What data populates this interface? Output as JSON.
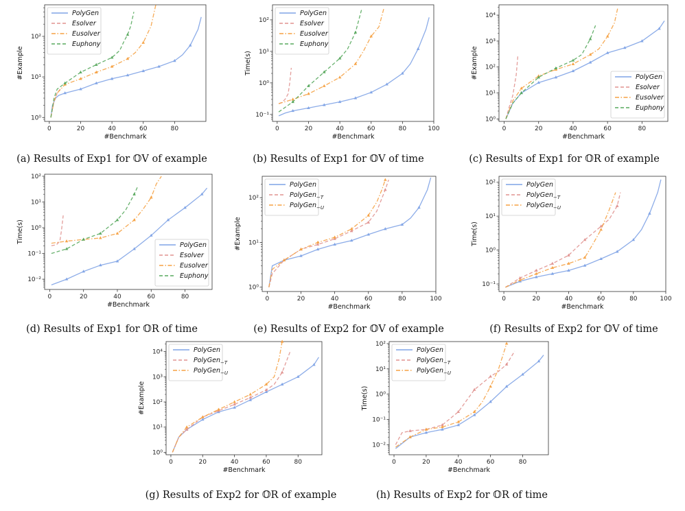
{
  "colors": {
    "PolyGen": "#7fa3e6",
    "Esolver": "#e0928f",
    "Eusolver": "#f5a142",
    "Euphony": "#57a85d",
    "PolyGen_T": "#e0928f",
    "PolyGen_U": "#f5a142",
    "axis": "#333333"
  },
  "chart_data": [
    {
      "id": "a",
      "type": "line",
      "log_y": true,
      "caption": "(a)  Results of Exp1 for 𝕆V of example",
      "xlabel": "#Benchmark",
      "ylabel": "#Example",
      "xlim": [
        -3,
        100
      ],
      "ylim": [
        0.8,
        600
      ],
      "xticks": [
        0,
        20,
        40,
        60,
        80
      ],
      "yticks": [
        1,
        10,
        100
      ],
      "ytick_labels": [
        "10⁰",
        "10¹",
        "10²"
      ],
      "legend": "top-left",
      "series": [
        {
          "name": "PolyGen",
          "style": "solid",
          "x": [
            1,
            2,
            4,
            6,
            10,
            20,
            30,
            40,
            50,
            60,
            70,
            80,
            85,
            90,
            95,
            97
          ],
          "y": [
            1,
            2,
            3,
            3.5,
            4,
            5,
            7,
            9,
            11,
            14,
            18,
            25,
            35,
            60,
            150,
            300
          ]
        },
        {
          "name": "Esolver",
          "style": "dashed",
          "x": [
            1,
            2,
            3,
            5,
            7
          ],
          "y": [
            1,
            1.6,
            2.5,
            4,
            5
          ]
        },
        {
          "name": "Eusolver",
          "style": "dashdot",
          "x": [
            1,
            3,
            5,
            10,
            20,
            30,
            40,
            50,
            55,
            60,
            65,
            68
          ],
          "y": [
            1,
            2.5,
            4,
            6.5,
            9,
            13,
            18,
            28,
            40,
            70,
            180,
            600
          ]
        },
        {
          "name": "Euphony",
          "style": "dashed",
          "x": [
            1,
            3,
            5,
            10,
            20,
            30,
            40,
            45,
            48,
            50,
            52,
            54
          ],
          "y": [
            1,
            3,
            5,
            7,
            13,
            20,
            30,
            45,
            80,
            110,
            180,
            400
          ]
        }
      ]
    },
    {
      "id": "b",
      "type": "line",
      "log_y": true,
      "caption": "(b)  Results of Exp1 for 𝕆V of time",
      "xlabel": "#Benchmark",
      "ylabel": "Time(s)",
      "xlim": [
        -3,
        100
      ],
      "ylim": [
        0.06,
        300
      ],
      "xticks": [
        0,
        20,
        40,
        60,
        80,
        100
      ],
      "yticks": [
        0.1,
        1,
        10,
        100
      ],
      "ytick_labels": [
        "10⁻¹",
        "10⁰",
        "10¹",
        "10²"
      ],
      "legend": "top-left",
      "series": [
        {
          "name": "PolyGen",
          "style": "solid",
          "x": [
            1,
            5,
            10,
            20,
            30,
            40,
            50,
            60,
            70,
            80,
            85,
            90,
            95,
            97
          ],
          "y": [
            0.09,
            0.11,
            0.13,
            0.16,
            0.2,
            0.25,
            0.33,
            0.5,
            0.9,
            2,
            4,
            12,
            50,
            120
          ]
        },
        {
          "name": "Esolver",
          "style": "dashed",
          "x": [
            1,
            3,
            5,
            7,
            8,
            9
          ],
          "y": [
            0.22,
            0.24,
            0.3,
            0.45,
            1.0,
            3
          ]
        },
        {
          "name": "Eusolver",
          "style": "dashdot",
          "x": [
            1,
            10,
            20,
            30,
            40,
            50,
            55,
            60,
            65,
            68
          ],
          "y": [
            0.22,
            0.3,
            0.45,
            0.8,
            1.5,
            4,
            10,
            30,
            60,
            220
          ]
        },
        {
          "name": "Euphony",
          "style": "dashed",
          "x": [
            1,
            10,
            20,
            30,
            40,
            45,
            50,
            54
          ],
          "y": [
            0.12,
            0.25,
            0.8,
            2.2,
            6,
            12,
            40,
            220
          ]
        }
      ]
    },
    {
      "id": "c",
      "type": "line",
      "log_y": true,
      "caption": "(c)  Results of Exp1 for 𝕆R of example",
      "xlabel": "#Benchmark",
      "ylabel": "#Example",
      "xlim": [
        -3,
        95
      ],
      "ylim": [
        0.8,
        25000
      ],
      "xticks": [
        0,
        20,
        40,
        60,
        80
      ],
      "yticks": [
        1,
        10,
        100,
        1000,
        10000
      ],
      "ytick_labels": [
        "10⁰",
        "10¹",
        "10²",
        "10³",
        "10⁴"
      ],
      "legend": "bottom-right",
      "series": [
        {
          "name": "PolyGen",
          "style": "solid",
          "x": [
            1,
            3,
            5,
            10,
            20,
            30,
            40,
            50,
            60,
            70,
            80,
            90,
            93
          ],
          "y": [
            1,
            2,
            4,
            10,
            25,
            40,
            70,
            150,
            350,
            550,
            1000,
            3000,
            6000
          ]
        },
        {
          "name": "Esolver",
          "style": "dashed",
          "x": [
            1,
            3,
            5,
            7,
            8
          ],
          "y": [
            1,
            3,
            8,
            50,
            300
          ]
        },
        {
          "name": "Eusolver",
          "style": "dashdot",
          "x": [
            1,
            5,
            10,
            20,
            30,
            40,
            50,
            55,
            60,
            64,
            66
          ],
          "y": [
            1,
            5,
            15,
            45,
            80,
            130,
            300,
            500,
            1500,
            5000,
            20000
          ]
        },
        {
          "name": "Euphony",
          "style": "dashed",
          "x": [
            1,
            5,
            10,
            20,
            30,
            40,
            45,
            50,
            53
          ],
          "y": [
            1,
            4,
            10,
            40,
            90,
            180,
            300,
            1200,
            4000
          ]
        }
      ]
    },
    {
      "id": "d",
      "type": "line",
      "log_y": true,
      "caption": "(d)  Results of Exp1 for 𝕆R of time",
      "xlabel": "#Benchmark",
      "ylabel": "Time(s)",
      "xlim": [
        -3,
        96
      ],
      "ylim": [
        0.004,
        120
      ],
      "xticks": [
        0,
        20,
        40,
        60,
        80
      ],
      "yticks": [
        0.01,
        0.1,
        1,
        10,
        100
      ],
      "ytick_labels": [
        "10⁻²",
        "10⁻¹",
        "10⁰",
        "10¹",
        "10²"
      ],
      "legend": "bottom-right",
      "series": [
        {
          "name": "PolyGen",
          "style": "solid",
          "x": [
            1,
            10,
            20,
            30,
            40,
            50,
            60,
            70,
            80,
            90,
            93
          ],
          "y": [
            0.006,
            0.01,
            0.02,
            0.035,
            0.05,
            0.15,
            0.5,
            2,
            6,
            20,
            35
          ]
        },
        {
          "name": "Esolver",
          "style": "dashed",
          "x": [
            1,
            4,
            6,
            7,
            8
          ],
          "y": [
            0.2,
            0.22,
            0.3,
            0.8,
            3
          ]
        },
        {
          "name": "Eusolver",
          "style": "dashdot",
          "x": [
            1,
            10,
            20,
            30,
            40,
            50,
            55,
            60,
            63,
            66
          ],
          "y": [
            0.25,
            0.3,
            0.35,
            0.4,
            0.6,
            2,
            5,
            15,
            50,
            100
          ]
        },
        {
          "name": "Euphony",
          "style": "dashed",
          "x": [
            1,
            10,
            20,
            30,
            40,
            45,
            50,
            52
          ],
          "y": [
            0.1,
            0.15,
            0.35,
            0.6,
            2,
            5,
            20,
            40
          ]
        }
      ]
    },
    {
      "id": "e",
      "type": "line",
      "log_y": true,
      "caption": "(e)  Results of Exp2 for 𝕆V of example",
      "xlabel": "#Benchmark",
      "ylabel": "#Example",
      "xlim": [
        -3,
        100
      ],
      "ylim": [
        0.8,
        300
      ],
      "xticks": [
        0,
        20,
        40,
        60,
        80,
        100
      ],
      "yticks": [
        1,
        10,
        100
      ],
      "ytick_labels": [
        "10⁰",
        "10¹",
        "10²"
      ],
      "legend": "top-left",
      "series": [
        {
          "name": "PolyGen",
          "style": "solid",
          "x": [
            1,
            3,
            10,
            20,
            30,
            40,
            50,
            60,
            70,
            80,
            85,
            90,
            95,
            97
          ],
          "y": [
            1,
            3,
            4,
            5,
            7,
            9,
            11,
            15,
            20,
            25,
            35,
            60,
            150,
            280
          ]
        },
        {
          "name": "PolyGen_T",
          "style": "dashed",
          "x": [
            1,
            3,
            10,
            20,
            30,
            40,
            50,
            60,
            65,
            70,
            72
          ],
          "y": [
            1,
            2,
            4,
            7,
            9,
            12,
            18,
            28,
            50,
            150,
            250
          ]
        },
        {
          "name": "PolyGen_U",
          "style": "dashdot",
          "x": [
            1,
            3,
            10,
            20,
            30,
            40,
            50,
            60,
            65,
            68,
            70
          ],
          "y": [
            1,
            2.5,
            4,
            7,
            10,
            13,
            20,
            40,
            80,
            150,
            250
          ]
        }
      ]
    },
    {
      "id": "f",
      "type": "line",
      "log_y": true,
      "caption": "(f)  Results of Exp2 for 𝕆V of time",
      "xlabel": "#Benchmark",
      "ylabel": "Time(s)",
      "xlim": [
        -3,
        100
      ],
      "ylim": [
        0.06,
        150
      ],
      "xticks": [
        0,
        20,
        40,
        60,
        80,
        100
      ],
      "yticks": [
        0.1,
        1,
        10,
        100
      ],
      "ytick_labels": [
        "10⁻¹",
        "10⁰",
        "10¹",
        "10²"
      ],
      "legend": "top-left",
      "series": [
        {
          "name": "PolyGen",
          "style": "solid",
          "x": [
            1,
            10,
            20,
            30,
            40,
            50,
            60,
            70,
            80,
            85,
            90,
            95,
            97
          ],
          "y": [
            0.08,
            0.12,
            0.16,
            0.2,
            0.25,
            0.35,
            0.55,
            0.9,
            2,
            4,
            12,
            50,
            120
          ]
        },
        {
          "name": "PolyGen_T",
          "style": "dashed",
          "x": [
            1,
            10,
            20,
            30,
            40,
            50,
            60,
            65,
            70,
            72
          ],
          "y": [
            0.08,
            0.15,
            0.25,
            0.4,
            0.7,
            2,
            5,
            8,
            20,
            50
          ]
        },
        {
          "name": "PolyGen_U",
          "style": "dashdot",
          "x": [
            1,
            10,
            20,
            30,
            40,
            50,
            55,
            60,
            65,
            69
          ],
          "y": [
            0.08,
            0.13,
            0.2,
            0.3,
            0.4,
            0.6,
            1.5,
            4,
            15,
            50
          ]
        }
      ]
    },
    {
      "id": "g",
      "type": "line",
      "log_y": true,
      "caption": "(g)  Results of Exp2 for 𝕆R of example",
      "xlabel": "#Benchmark",
      "ylabel": "#Example",
      "xlim": [
        -3,
        95
      ],
      "ylim": [
        0.8,
        25000
      ],
      "xticks": [
        0,
        20,
        40,
        60,
        80
      ],
      "yticks": [
        1,
        10,
        100,
        1000,
        10000
      ],
      "ytick_labels": [
        "10⁰",
        "10¹",
        "10²",
        "10³",
        "10⁴"
      ],
      "legend": "top-left",
      "series": [
        {
          "name": "PolyGen",
          "style": "solid",
          "x": [
            1,
            5,
            10,
            20,
            30,
            40,
            50,
            60,
            70,
            80,
            90,
            93
          ],
          "y": [
            1,
            4,
            8,
            20,
            40,
            60,
            120,
            250,
            500,
            1000,
            3000,
            6000
          ]
        },
        {
          "name": "PolyGen_T",
          "style": "dashed",
          "x": [
            1,
            5,
            10,
            20,
            30,
            40,
            50,
            60,
            65,
            70,
            75
          ],
          "y": [
            1,
            4,
            8,
            25,
            45,
            80,
            150,
            300,
            500,
            1500,
            10000
          ]
        },
        {
          "name": "PolyGen_U",
          "style": "dashdot",
          "x": [
            1,
            5,
            10,
            20,
            30,
            40,
            50,
            60,
            65,
            68,
            70
          ],
          "y": [
            1,
            4,
            10,
            25,
            50,
            100,
            200,
            500,
            1000,
            5000,
            25000
          ]
        }
      ]
    },
    {
      "id": "h",
      "type": "line",
      "log_y": true,
      "caption": "(h)  Results of Exp2 for 𝕆R of time",
      "xlabel": "#Benchmark",
      "ylabel": "Time(s)",
      "xlim": [
        -3,
        96
      ],
      "ylim": [
        0.004,
        120
      ],
      "xticks": [
        0,
        20,
        40,
        60,
        80
      ],
      "yticks": [
        0.01,
        0.1,
        1,
        10,
        100
      ],
      "ytick_labels": [
        "10⁻²",
        "10⁻¹",
        "10⁰",
        "10¹",
        "10²"
      ],
      "legend": "top-left",
      "series": [
        {
          "name": "PolyGen",
          "style": "solid",
          "x": [
            1,
            10,
            20,
            30,
            40,
            50,
            60,
            70,
            80,
            90,
            93
          ],
          "y": [
            0.007,
            0.02,
            0.03,
            0.04,
            0.06,
            0.15,
            0.5,
            2,
            6,
            20,
            35
          ]
        },
        {
          "name": "PolyGen_T",
          "style": "dashed",
          "x": [
            1,
            5,
            10,
            20,
            30,
            40,
            50,
            60,
            65,
            70,
            75
          ],
          "y": [
            0.01,
            0.03,
            0.035,
            0.04,
            0.06,
            0.2,
            1.5,
            5,
            8,
            15,
            50
          ]
        },
        {
          "name": "PolyGen_U",
          "style": "dashdot",
          "x": [
            1,
            10,
            20,
            30,
            40,
            50,
            55,
            60,
            65,
            70
          ],
          "y": [
            0.008,
            0.02,
            0.04,
            0.05,
            0.08,
            0.2,
            0.5,
            2,
            10,
            100
          ]
        }
      ]
    }
  ]
}
